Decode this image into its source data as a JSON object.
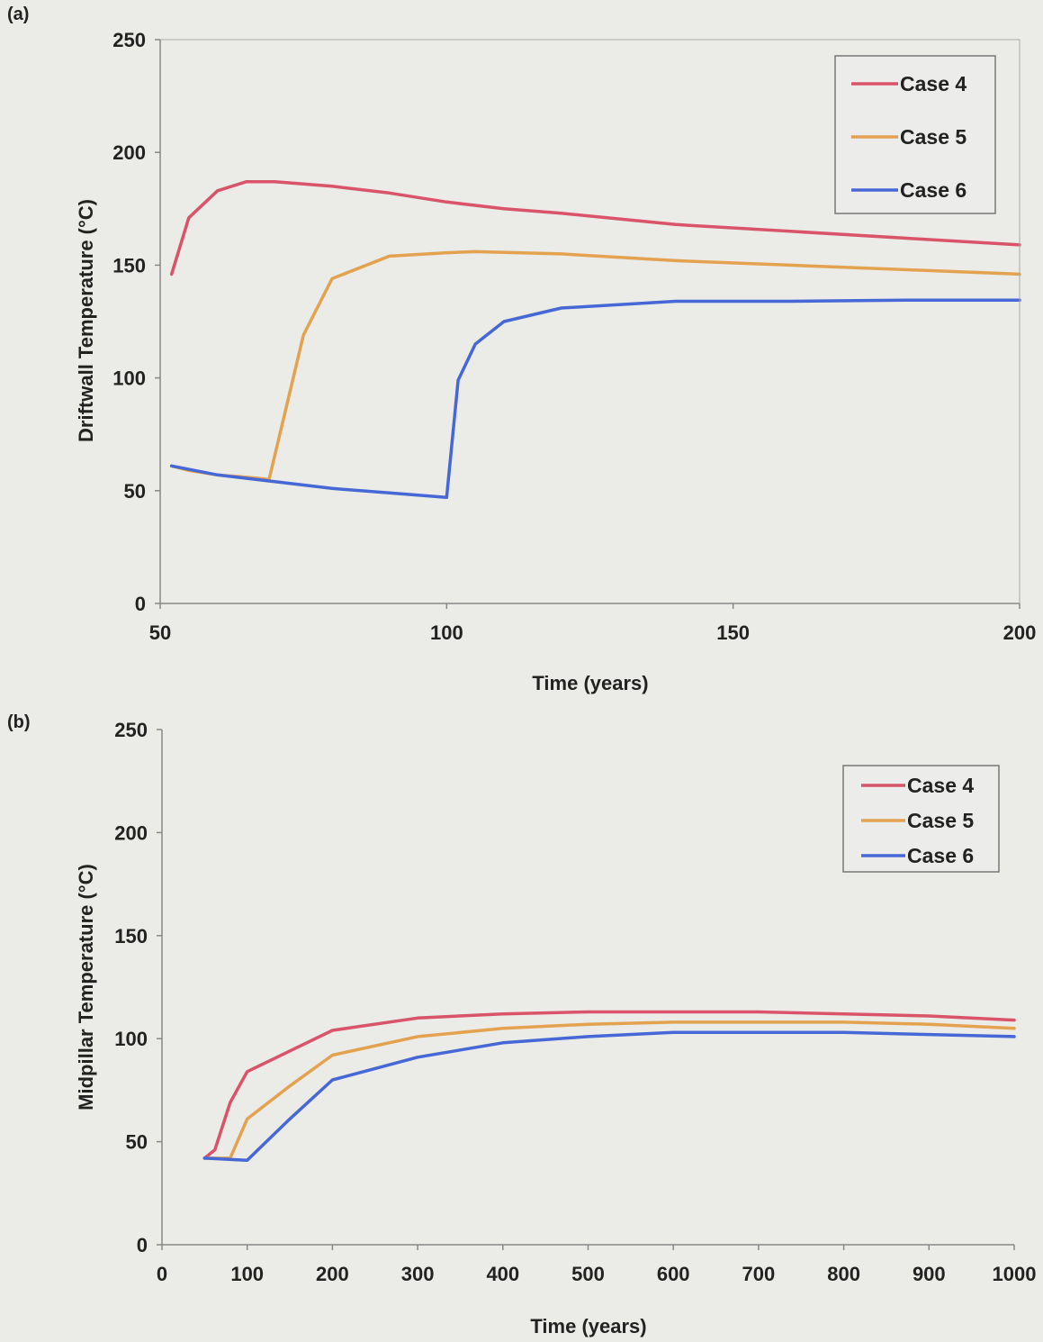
{
  "chart_data": [
    {
      "panel_label": "(a)",
      "type": "line",
      "xlabel": "Time (years)",
      "ylabel": "Driftwall Temperature (°C)",
      "xlim": [
        50,
        200
      ],
      "ylim": [
        0,
        250
      ],
      "xticks": [
        50,
        100,
        150,
        200
      ],
      "yticks": [
        0,
        50,
        100,
        150,
        200,
        250
      ],
      "grid": false,
      "legend_position": "top-right",
      "series": [
        {
          "name": "Case 4",
          "color": "#d9536a",
          "x": [
            52,
            55,
            60,
            65,
            70,
            80,
            90,
            100,
            110,
            120,
            140,
            160,
            180,
            200
          ],
          "y": [
            146,
            171,
            183,
            187,
            187,
            185,
            182,
            178,
            175,
            173,
            168,
            165,
            162,
            159
          ]
        },
        {
          "name": "Case 5",
          "color": "#e3a24f",
          "x": [
            52,
            55,
            60,
            65,
            69,
            72,
            75,
            80,
            90,
            100,
            105,
            120,
            140,
            160,
            180,
            200
          ],
          "y": [
            61,
            59,
            57,
            56,
            55,
            87,
            119,
            144,
            154,
            155.5,
            156,
            155,
            152,
            150,
            148,
            146
          ]
        },
        {
          "name": "Case 6",
          "color": "#4668d6",
          "x": [
            52,
            60,
            70,
            80,
            90,
            100,
            102,
            105,
            110,
            120,
            140,
            160,
            180,
            200
          ],
          "y": [
            61,
            57,
            54,
            51,
            49,
            47,
            99,
            115,
            125,
            131,
            134,
            134,
            134.5,
            134.5
          ]
        }
      ]
    },
    {
      "panel_label": "(b)",
      "type": "line",
      "xlabel": "Time (years)",
      "ylabel": "Midpillar Temperature (°C)",
      "xlim": [
        0,
        1000
      ],
      "ylim": [
        0,
        250
      ],
      "xticks": [
        0,
        100,
        200,
        300,
        400,
        500,
        600,
        700,
        800,
        900,
        1000
      ],
      "yticks": [
        0,
        50,
        100,
        150,
        200,
        250
      ],
      "grid": false,
      "legend_position": "top-right",
      "series": [
        {
          "name": "Case 4",
          "color": "#d9536a",
          "x": [
            50,
            62,
            80,
            100,
            150,
            200,
            300,
            400,
            500,
            600,
            700,
            800,
            900,
            1000
          ],
          "y": [
            42,
            46,
            69,
            84,
            94,
            104,
            110,
            112,
            113,
            113,
            113,
            112,
            111,
            109
          ]
        },
        {
          "name": "Case 5",
          "color": "#e3a24f",
          "x": [
            50,
            80,
            100,
            150,
            200,
            300,
            400,
            500,
            600,
            700,
            800,
            900,
            1000
          ],
          "y": [
            42,
            42,
            61,
            77,
            92,
            101,
            105,
            107,
            108,
            108,
            108,
            107,
            105
          ]
        },
        {
          "name": "Case 6",
          "color": "#4668d6",
          "x": [
            50,
            100,
            150,
            200,
            300,
            400,
            500,
            600,
            700,
            800,
            900,
            1000
          ],
          "y": [
            42,
            41,
            61,
            80,
            91,
            98,
            101,
            103,
            103,
            103,
            102,
            101
          ]
        }
      ]
    }
  ]
}
